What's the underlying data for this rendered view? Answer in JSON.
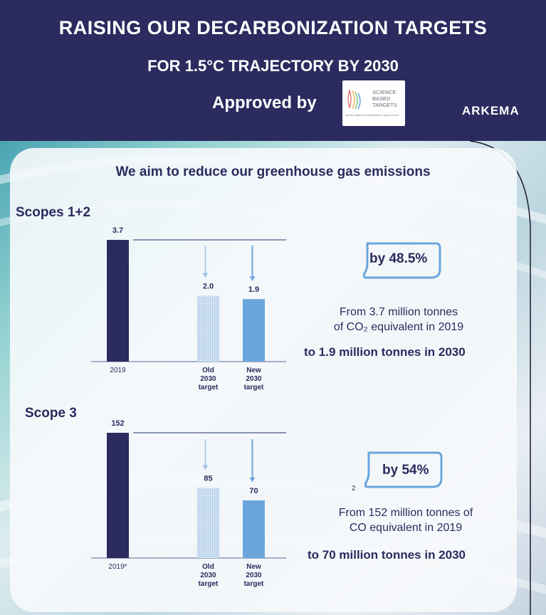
{
  "header": {
    "title_line1": "RAISING OUR DECARBONIZATION TARGETS",
    "title_line2": "FOR 1.5°C TRAJECTORY BY 2030",
    "approved_by": "Approved by",
    "logo_line1": "SCIENCE",
    "logo_line2": "BASED",
    "logo_line3": "TARGETS",
    "logo_tagline": "DRIVING AMBITIOUS CORPORATE CLIMATE ACTION",
    "brand": "ARKEMA"
  },
  "headline": "We aim to reduce our greenhouse gas emissions",
  "colors": {
    "navy": "#2b2b5f",
    "light_blue": "#6aa6dc",
    "dotted_blue": "#b9d4ee",
    "header_bg": "#2b2b5f"
  },
  "chart_data": [
    {
      "type": "bar",
      "title": "Scopes 1+2",
      "categories": [
        "2019",
        "Old 2030 target",
        "New 2030 target"
      ],
      "category_labels": [
        [
          "2019"
        ],
        [
          "Old",
          "2030",
          "target"
        ],
        [
          "New",
          "2030",
          "target"
        ]
      ],
      "values": [
        3.7,
        2.0,
        1.9
      ],
      "value_labels": [
        "3.7",
        "2.0",
        "1.9"
      ],
      "reduction_badge": "by 48.5%",
      "desc_line1": "From 3.7 million tonnes",
      "desc_line2": "of CO₂ equivalent in 2019",
      "target_text": "to 1.9 million tonnes in 2030"
    },
    {
      "type": "bar",
      "title": "Scope 3",
      "categories": [
        "2019*",
        "Old 2030 target",
        "New 2030 target"
      ],
      "category_labels": [
        [
          "2019*"
        ],
        [
          "Old",
          "2030",
          "target"
        ],
        [
          "New",
          "2030",
          "target"
        ]
      ],
      "values": [
        152,
        85,
        70
      ],
      "value_labels": [
        "152",
        "85",
        "70"
      ],
      "reduction_badge": "by 54%",
      "subscript_note": "2",
      "desc_line1": "From 152 million tonnes of",
      "desc_line2": "CO  equivalent in 2019",
      "target_text": "to 70 million tonnes in 2030"
    }
  ]
}
